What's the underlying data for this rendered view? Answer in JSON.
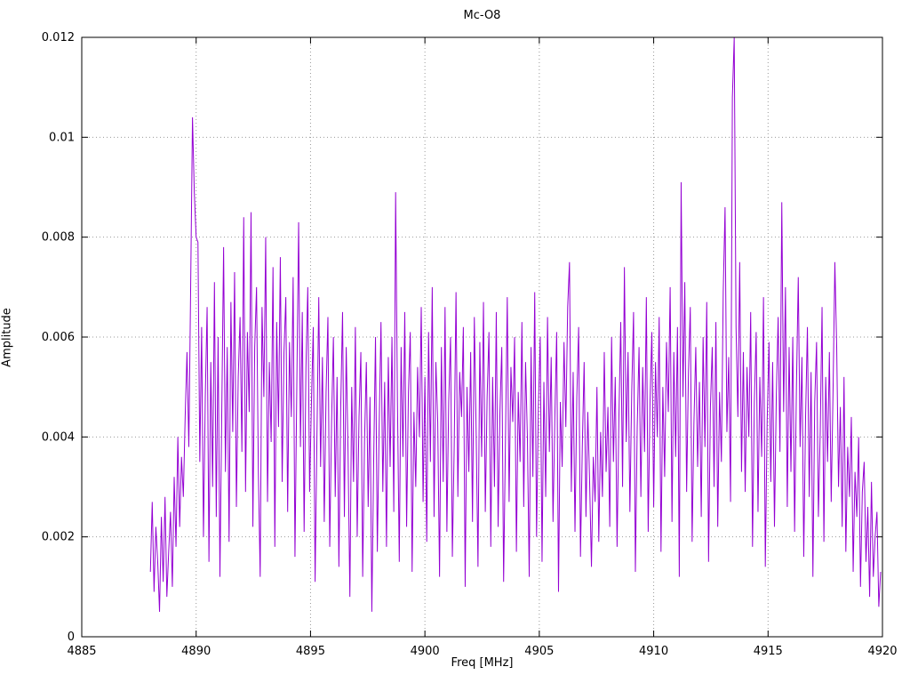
{
  "chart_data": {
    "type": "line",
    "title": "Mc-O8",
    "xlabel": "Freq [MHz]",
    "ylabel": "Amplitude",
    "xlim": [
      4885,
      4920
    ],
    "ylim": [
      0,
      0.012
    ],
    "grid": true,
    "legend_position": "none",
    "line_color": "#9400D3",
    "grid_color": "#999999",
    "axis_color": "#000000",
    "xticks": [
      4885,
      4890,
      4895,
      4900,
      4905,
      4910,
      4915,
      4920
    ],
    "yticks": [
      {
        "v": 0,
        "label": "0"
      },
      {
        "v": 0.002,
        "label": "0.002"
      },
      {
        "v": 0.004,
        "label": "0.004"
      },
      {
        "v": 0.006,
        "label": "0.006"
      },
      {
        "v": 0.008,
        "label": "0.008"
      },
      {
        "v": 0.01,
        "label": "0.01"
      },
      {
        "v": 0.012,
        "label": "0.012"
      }
    ],
    "x_start": 4888.0,
    "x_step": 0.08,
    "amplitude_scale": 0.0001,
    "amplitudes_x1e4": [
      13,
      27,
      9,
      22,
      15,
      5,
      24,
      11,
      28,
      8,
      17,
      25,
      10,
      32,
      18,
      40,
      22,
      36,
      28,
      44,
      57,
      38,
      70,
      104,
      89,
      80,
      79,
      35,
      62,
      20,
      48,
      66,
      15,
      55,
      30,
      71,
      24,
      60,
      12,
      45,
      78,
      33,
      58,
      19,
      67,
      41,
      73,
      26,
      52,
      64,
      37,
      84,
      29,
      61,
      45,
      85,
      22,
      58,
      70,
      33,
      12,
      66,
      48,
      80,
      27,
      55,
      39,
      74,
      18,
      63,
      42,
      76,
      31,
      57,
      68,
      25,
      59,
      44,
      72,
      16,
      50,
      83,
      38,
      65,
      21,
      54,
      70,
      29,
      47,
      62,
      11,
      40,
      68,
      34,
      56,
      23,
      49,
      64,
      18,
      43,
      60,
      28,
      52,
      14,
      46,
      65,
      24,
      58,
      37,
      8,
      50,
      31,
      62,
      20,
      44,
      57,
      12,
      39,
      55,
      26,
      48,
      5,
      35,
      60,
      17,
      42,
      63,
      29,
      51,
      18,
      56,
      34,
      60,
      25,
      89,
      47,
      15,
      58,
      36,
      65,
      22,
      49,
      61,
      13,
      45,
      30,
      54,
      40,
      66,
      27,
      52,
      19,
      61,
      35,
      70,
      24,
      55,
      43,
      12,
      58,
      31,
      66,
      21,
      47,
      60,
      16,
      38,
      69,
      28,
      53,
      44,
      62,
      10,
      50,
      33,
      57,
      23,
      64,
      41,
      14,
      59,
      36,
      67,
      25,
      48,
      61,
      18,
      52,
      30,
      65,
      22,
      45,
      58,
      11,
      39,
      68,
      27,
      54,
      43,
      60,
      17,
      49,
      35,
      63,
      26,
      55,
      40,
      12,
      58,
      32,
      69,
      20,
      46,
      60,
      15,
      51,
      28,
      64,
      37,
      56,
      23,
      44,
      61,
      9,
      47,
      34,
      59,
      42,
      66,
      75,
      29,
      53,
      21,
      48,
      62,
      16,
      38,
      55,
      24,
      45,
      31,
      14,
      36,
      27,
      50,
      19,
      41,
      28,
      57,
      33,
      46,
      22,
      60,
      35,
      52,
      18,
      44,
      63,
      30,
      74,
      39,
      57,
      25,
      49,
      65,
      13,
      42,
      58,
      28,
      54,
      37,
      68,
      21,
      47,
      61,
      26,
      55,
      40,
      64,
      17,
      50,
      32,
      59,
      45,
      70,
      23,
      57,
      36,
      62,
      12,
      91,
      48,
      71,
      29,
      53,
      66,
      19,
      43,
      58,
      34,
      51,
      24,
      60,
      38,
      67,
      15,
      46,
      58,
      30,
      63,
      22,
      49,
      35,
      69,
      86,
      41,
      56,
      27,
      108,
      120,
      62,
      44,
      75,
      33,
      57,
      29,
      54,
      40,
      65,
      18,
      47,
      61,
      25,
      52,
      36,
      68,
      14,
      43,
      59,
      31,
      55,
      22,
      48,
      64,
      37,
      87,
      45,
      70,
      26,
      58,
      33,
      60,
      21,
      50,
      72,
      38,
      56,
      16,
      44,
      62,
      28,
      53,
      12,
      47,
      59,
      24,
      41,
      66,
      19,
      52,
      35,
      57,
      27,
      49,
      75,
      58,
      30,
      46,
      22,
      52,
      17,
      38,
      28,
      44,
      13,
      33,
      24,
      40,
      10,
      29,
      35,
      15,
      26,
      8,
      31,
      12,
      20,
      25,
      6,
      13
    ]
  }
}
